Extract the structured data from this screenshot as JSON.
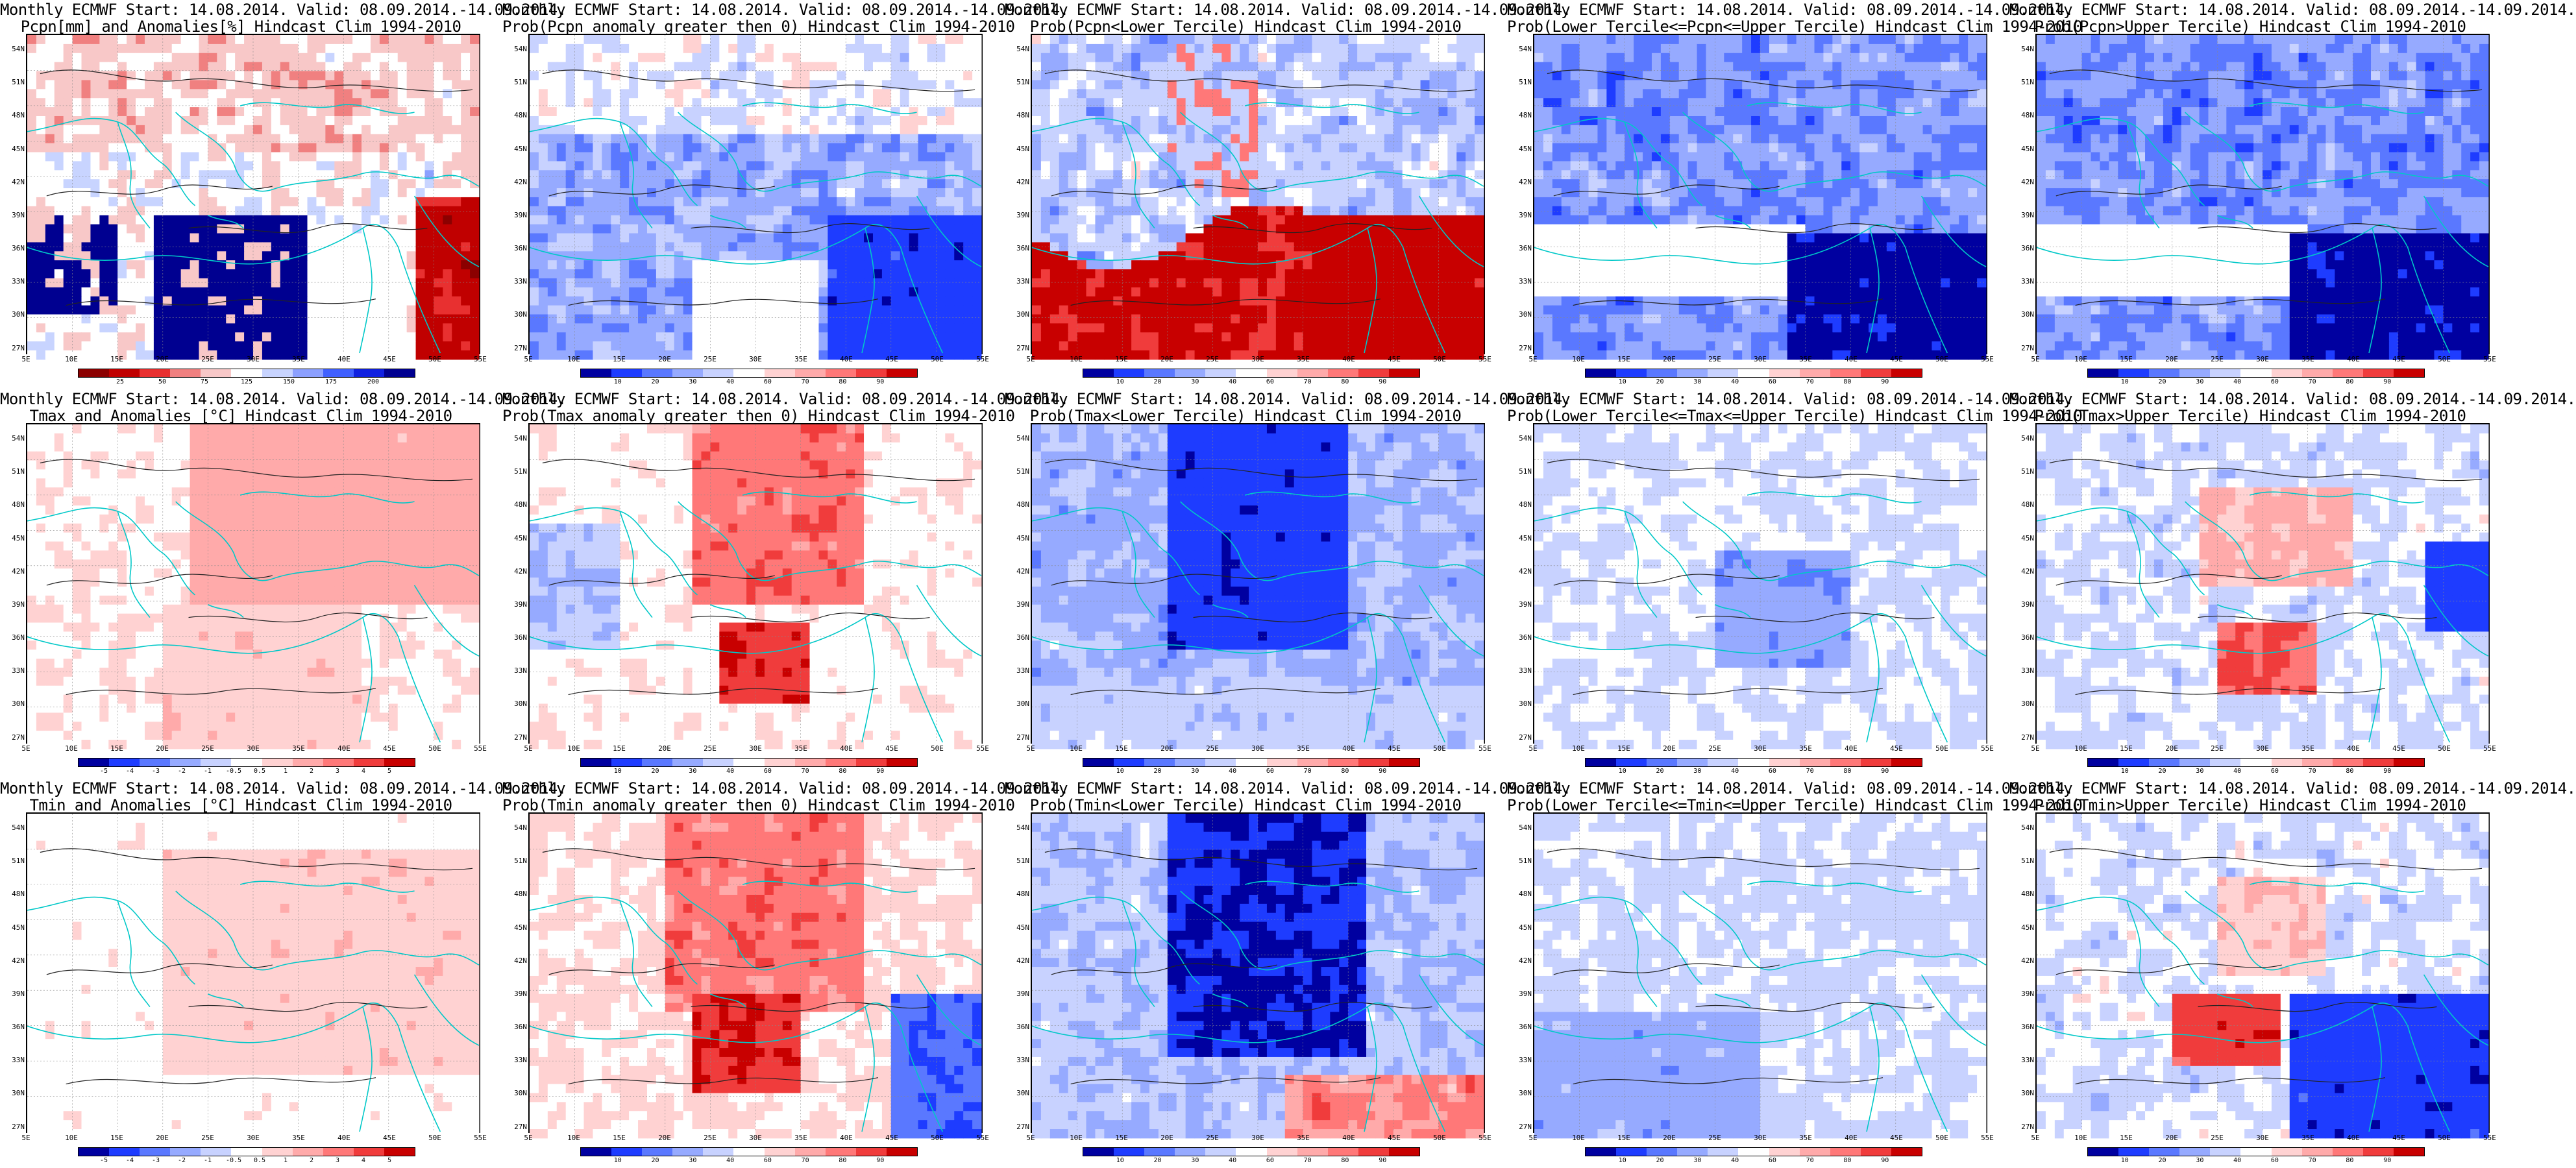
{
  "map": {
    "lat_labels": [
      "54N",
      "51N",
      "48N",
      "45N",
      "42N",
      "39N",
      "36N",
      "33N",
      "30N",
      "27N"
    ],
    "lon_labels": [
      "5E",
      "10E",
      "15E",
      "20E",
      "25E",
      "30E",
      "35E",
      "40E",
      "45E",
      "50E",
      "55E"
    ]
  },
  "colorbars": {
    "precip_anom": {
      "colors": [
        "#8b0000",
        "#c00000",
        "#e83030",
        "#f08080",
        "#f8c8c8",
        "#ffffff",
        "#c8d4ff",
        "#8ca0ff",
        "#4060ff",
        "#1020e0",
        "#000090"
      ],
      "labels": [
        "25",
        "50",
        "75",
        "125",
        "150",
        "175",
        "200"
      ]
    },
    "temp_anom": {
      "colors": [
        "#0000a0",
        "#1e3cff",
        "#5a78ff",
        "#96aaff",
        "#c8d2ff",
        "#ffffff",
        "#ffd2d2",
        "#ffaaaa",
        "#ff7878",
        "#f03c3c",
        "#c80000"
      ],
      "labels": [
        "-5",
        "-4",
        "-3",
        "-2",
        "-1",
        "-0.5",
        "0.5",
        "1",
        "2",
        "3",
        "4",
        "5"
      ]
    },
    "prob": {
      "colors": [
        "#0000a0",
        "#1e3cff",
        "#5a78ff",
        "#96aaff",
        "#c8d2ff",
        "#ffffff",
        "#ffd2d2",
        "#ffaaaa",
        "#ff7878",
        "#f03c3c",
        "#c80000"
      ],
      "labels": [
        "10",
        "20",
        "30",
        "40",
        "60",
        "70",
        "80",
        "90"
      ]
    }
  },
  "panels": [
    {
      "line1": "Monthly ECMWF Start: 14.08.2014. Valid: 08.09.2014.-14.09.2014.",
      "line2": "Pcpn[mm] and Anomalies[%] Hindcast Clim 1994-2010",
      "cbar": "precip_anom",
      "scheme": "precip"
    },
    {
      "line1": "Monthly ECMWF Start: 14.08.2014. Valid: 08.09.2014.-14.09.2014.",
      "line2": "Prob(Pcpn anomaly greater then 0) Hindcast Clim 1994-2010",
      "cbar": "prob",
      "scheme": "blue"
    },
    {
      "line1": "Monthly ECMWF Start: 14.08.2014. Valid: 08.09.2014.-14.09.2014.",
      "line2": "Prob(Pcpn<Lower Tercile) Hindcast Clim 1994-2010",
      "cbar": "prob",
      "scheme": "redsouth"
    },
    {
      "line1": "Monthly ECMWF Start: 14.08.2014. Valid: 08.09.2014.-14.09.2014.",
      "line2": "Prob(Lower Tercile<=Pcpn<=Upper Tercile) Hindcast Clim 1994-2010",
      "cbar": "prob",
      "scheme": "deepblue"
    },
    {
      "line1": "Monthly ECMWF Start: 14.08.2014. Valid: 08.09.2014.-14.09.2014.",
      "line2": "Prob(Pcpn>Upper Tercile) Hindcast Clim 1994-2010",
      "cbar": "prob",
      "scheme": "deepblue"
    },
    {
      "line1": "Monthly ECMWF Start: 14.08.2014. Valid: 08.09.2014.-14.09.2014.",
      "line2": "Tmax and Anomalies [°C] Hindcast Clim 1994-2010",
      "cbar": "temp_anom",
      "scheme": "warm"
    },
    {
      "line1": "Monthly ECMWF Start: 14.08.2014. Valid: 08.09.2014.-14.09.2014.",
      "line2": "Prob(Tmax anomaly greater then 0) Hindcast Clim 1994-2010",
      "cbar": "prob",
      "scheme": "warmprob"
    },
    {
      "line1": "Monthly ECMWF Start: 14.08.2014. Valid: 08.09.2014.-14.09.2014.",
      "line2": "Prob(Tmax<Lower Tercile) Hindcast Clim 1994-2010",
      "cbar": "prob",
      "scheme": "coolprob"
    },
    {
      "line1": "Monthly ECMWF Start: 14.08.2014. Valid: 08.09.2014.-14.09.2014.",
      "line2": "Prob(Lower Tercile<=Tmax<=Upper Tercile) Hindcast Clim 1994-2010",
      "cbar": "prob",
      "scheme": "lightblue"
    },
    {
      "line1": "Monthly ECMWF Start: 14.08.2014. Valid: 08.09.2014.-14.09.2014.",
      "line2": "Prob(Tmax>Upper Tercile) Hindcast Clim 1994-2010",
      "cbar": "prob",
      "scheme": "mixed"
    },
    {
      "line1": "Monthly ECMWF Start: 14.08.2014. Valid: 08.09.2014.-14.09.2014.",
      "line2": "Tmin and Anomalies [°C] Hindcast Clim 1994-2010",
      "cbar": "temp_anom",
      "scheme": "warmlight"
    },
    {
      "line1": "Monthly ECMWF Start: 14.08.2014. Valid: 08.09.2014.-14.09.2014.",
      "line2": "Prob(Tmin anomaly greater then 0) Hindcast Clim 1994-2010",
      "cbar": "prob",
      "scheme": "warmprob2"
    },
    {
      "line1": "Monthly ECMWF Start: 14.08.2014. Valid: 08.09.2014.-14.09.2014.",
      "line2": "Prob(Tmin<Lower Tercile) Hindcast Clim 1994-2010",
      "cbar": "prob",
      "scheme": "coolprob2"
    },
    {
      "line1": "Monthly ECMWF Start: 14.08.2014. Valid: 08.09.2014.-14.09.2014.",
      "line2": "Prob(Lower Tercile<=Tmin<=Upper Tercile) Hindcast Clim 1994-2010",
      "cbar": "prob",
      "scheme": "lightblue2"
    },
    {
      "line1": "Monthly ECMWF Start: 14.08.2014. Valid: 08.09.2014.-14.09.2014.",
      "line2": "Prob(Tmin>Upper Tercile) Hindcast Clim 1994-2010",
      "cbar": "prob",
      "scheme": "mixed2"
    }
  ]
}
